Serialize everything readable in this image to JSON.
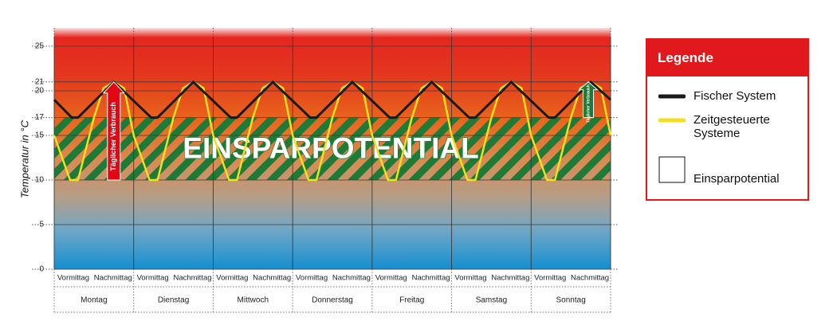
{
  "chart_data": {
    "type": "line",
    "y_label": "Temperatur in °C",
    "ylim": [
      0,
      26
    ],
    "yticks": [
      0,
      5,
      10,
      15,
      17,
      20,
      21,
      25
    ],
    "xlim": [
      0,
      7
    ],
    "categories": [
      "Montag",
      "Dienstag",
      "Mittwoch",
      "Donnerstag",
      "Freitag",
      "Samstag",
      "Sonntag"
    ],
    "subcategories": [
      "Vormittag",
      "Nachmittag"
    ],
    "grid": true,
    "series": [
      {
        "name": "Fischer System",
        "color": "#1a1a1a",
        "x": [
          0,
          0.22,
          0.3,
          0.75,
          1.22,
          1.3,
          1.75,
          2.22,
          2.3,
          2.75,
          3.22,
          3.3,
          3.75,
          4.22,
          4.3,
          4.75,
          5.22,
          5.3,
          5.75,
          6.22,
          6.3,
          6.75,
          7
        ],
        "values": [
          19,
          17,
          17,
          21,
          17,
          17,
          21,
          17,
          17,
          21,
          17,
          17,
          21,
          17,
          17,
          21,
          17,
          17,
          21,
          17,
          17,
          21,
          19
        ]
      },
      {
        "name": "Zeitgesteuerte Systeme",
        "color": "#f3e01c",
        "x": [
          0,
          0.2,
          0.3,
          0.5,
          0.62,
          0.75,
          0.88,
          1,
          1.2,
          1.3,
          1.5,
          1.62,
          1.75,
          1.88,
          2,
          2.2,
          2.3,
          2.5,
          2.62,
          2.75,
          2.88,
          3,
          3.2,
          3.3,
          3.5,
          3.62,
          3.75,
          3.88,
          4,
          4.2,
          4.3,
          4.5,
          4.62,
          4.75,
          4.88,
          5,
          5.2,
          5.3,
          5.5,
          5.62,
          5.75,
          5.88,
          6,
          6.2,
          6.3,
          6.5,
          6.62,
          6.75,
          6.88,
          7
        ],
        "values": [
          15,
          10,
          10,
          17,
          20.3,
          21,
          20.3,
          15,
          10,
          10,
          17,
          20.3,
          21,
          20.3,
          15,
          10,
          10,
          17,
          20.3,
          21,
          20.3,
          15,
          10,
          10,
          17,
          20.3,
          21,
          20.3,
          15,
          10,
          10,
          17,
          20.3,
          21,
          20.3,
          15,
          10,
          10,
          17,
          20.3,
          21,
          20.3,
          15,
          10,
          10,
          17,
          20.3,
          21,
          20.3,
          15
        ]
      }
    ],
    "band": {
      "name": "Einsparpotential",
      "label": "EINSPARPOTENTIAL",
      "from": 10,
      "to": 17,
      "color": "#1e7a36"
    },
    "annotations": [
      {
        "text": "Täglicher Verbrauch",
        "x": 0.75,
        "from": 10,
        "to": 21,
        "color": "#e30613"
      },
      {
        "text": "Täglicher Verbrauch",
        "x": 6.72,
        "from": 17,
        "to": 21,
        "color": "#1e7a36"
      }
    ],
    "legend_title": "Legende",
    "legend_color": "#e2191c"
  }
}
